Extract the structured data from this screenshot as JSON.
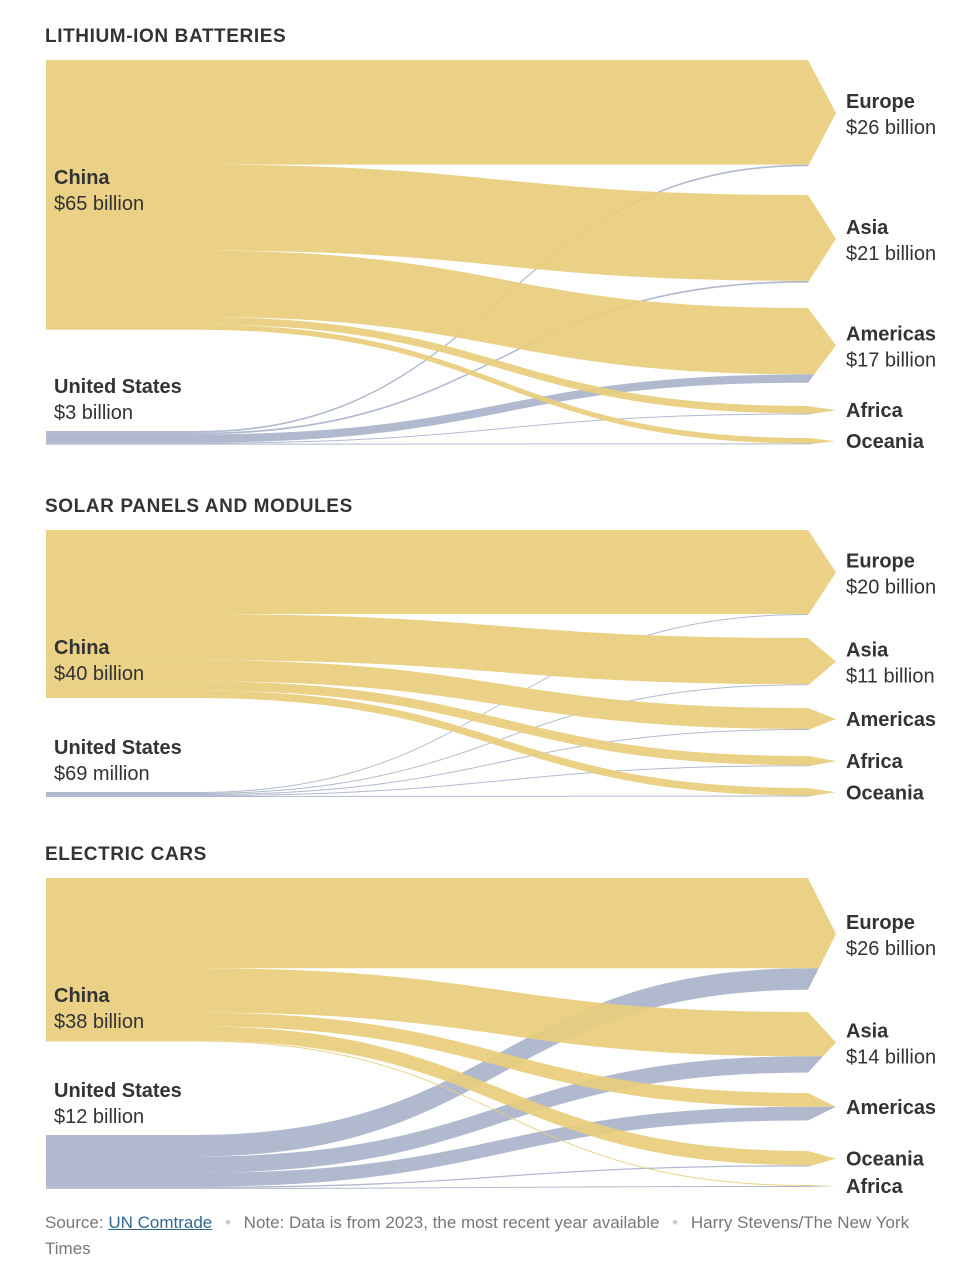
{
  "chart_data": [
    {
      "type": "sankey",
      "title": "LITHIUM-ION BATTERIES",
      "sources": [
        {
          "name": "China",
          "total_label": "$65 billion",
          "value": 65
        },
        {
          "name": "United States",
          "total_label": "$3 billion",
          "value": 3
        }
      ],
      "destinations": [
        {
          "name": "Europe",
          "total_label": "$26 billion"
        },
        {
          "name": "Asia",
          "total_label": "$21 billion"
        },
        {
          "name": "Americas",
          "total_label": "$17 billion"
        },
        {
          "name": "Africa",
          "total_label": ""
        },
        {
          "name": "Oceania",
          "total_label": ""
        }
      ],
      "flows": [
        {
          "source": "China",
          "target": "Europe",
          "value": 25.2
        },
        {
          "source": "China",
          "target": "Asia",
          "value": 20.7
        },
        {
          "source": "China",
          "target": "Americas",
          "value": 16.0
        },
        {
          "source": "China",
          "target": "Africa",
          "value": 1.8
        },
        {
          "source": "China",
          "target": "Oceania",
          "value": 1.3
        },
        {
          "source": "United States",
          "target": "Europe",
          "value": 0.4
        },
        {
          "source": "United States",
          "target": "Asia",
          "value": 0.4
        },
        {
          "source": "United States",
          "target": "Americas",
          "value": 2.0
        },
        {
          "source": "United States",
          "target": "Africa",
          "value": 0.1
        },
        {
          "source": "United States",
          "target": "Oceania",
          "value": 0.1
        }
      ]
    },
    {
      "type": "sankey",
      "title": "SOLAR PANELS AND MODULES",
      "sources": [
        {
          "name": "China",
          "total_label": "$40 billion",
          "value": 40
        },
        {
          "name": "United States",
          "total_label": "$69 million",
          "value": 0.069
        }
      ],
      "destinations": [
        {
          "name": "Europe",
          "total_label": "$20 billion"
        },
        {
          "name": "Asia",
          "total_label": "$11 billion"
        },
        {
          "name": "Americas",
          "total_label": ""
        },
        {
          "name": "Africa",
          "total_label": ""
        },
        {
          "name": "Oceania",
          "total_label": ""
        }
      ],
      "flows": [
        {
          "source": "China",
          "target": "Europe",
          "value": 20.0
        },
        {
          "source": "China",
          "target": "Asia",
          "value": 11.0
        },
        {
          "source": "China",
          "target": "Americas",
          "value": 5.0
        },
        {
          "source": "China",
          "target": "Africa",
          "value": 2.2
        },
        {
          "source": "China",
          "target": "Oceania",
          "value": 1.8
        },
        {
          "source": "United States",
          "target": "Europe",
          "value": 0.02
        },
        {
          "source": "United States",
          "target": "Asia",
          "value": 0.02
        },
        {
          "source": "United States",
          "target": "Americas",
          "value": 0.02
        },
        {
          "source": "United States",
          "target": "Africa",
          "value": 0.005
        },
        {
          "source": "United States",
          "target": "Oceania",
          "value": 0.004
        }
      ]
    },
    {
      "type": "sankey",
      "title": "ELECTRIC CARS",
      "sources": [
        {
          "name": "China",
          "total_label": "$38 billion",
          "value": 38
        },
        {
          "name": "United States",
          "total_label": "$12 billion",
          "value": 12
        }
      ],
      "destinations": [
        {
          "name": "Europe",
          "total_label": "$26 billion"
        },
        {
          "name": "Asia",
          "total_label": "$14 billion"
        },
        {
          "name": "Americas",
          "total_label": ""
        },
        {
          "name": "Oceania",
          "total_label": ""
        },
        {
          "name": "Africa",
          "total_label": ""
        }
      ],
      "flows": [
        {
          "source": "China",
          "target": "Europe",
          "value": 21.0
        },
        {
          "source": "China",
          "target": "Asia",
          "value": 10.3
        },
        {
          "source": "China",
          "target": "Americas",
          "value": 3.2
        },
        {
          "source": "China",
          "target": "Oceania",
          "value": 3.3
        },
        {
          "source": "China",
          "target": "Africa",
          "value": 0.2
        },
        {
          "source": "United States",
          "target": "Europe",
          "value": 5.0
        },
        {
          "source": "United States",
          "target": "Asia",
          "value": 3.8
        },
        {
          "source": "United States",
          "target": "Americas",
          "value": 3.2
        },
        {
          "source": "United States",
          "target": "Oceania",
          "value": 0.3
        },
        {
          "source": "United States",
          "target": "Africa",
          "value": 0.1
        }
      ]
    }
  ],
  "colors": {
    "China": "#e8cd7c",
    "United States": "#a9b1c9",
    "text": "#333333",
    "footer_text": "#777777",
    "link": "#326891"
  },
  "footer": {
    "source_label": "Source:",
    "source_link": "UN Comtrade",
    "note": "Note: Data is from 2023, the most recent year available",
    "credit": "Harry Stevens/The New York Times"
  }
}
